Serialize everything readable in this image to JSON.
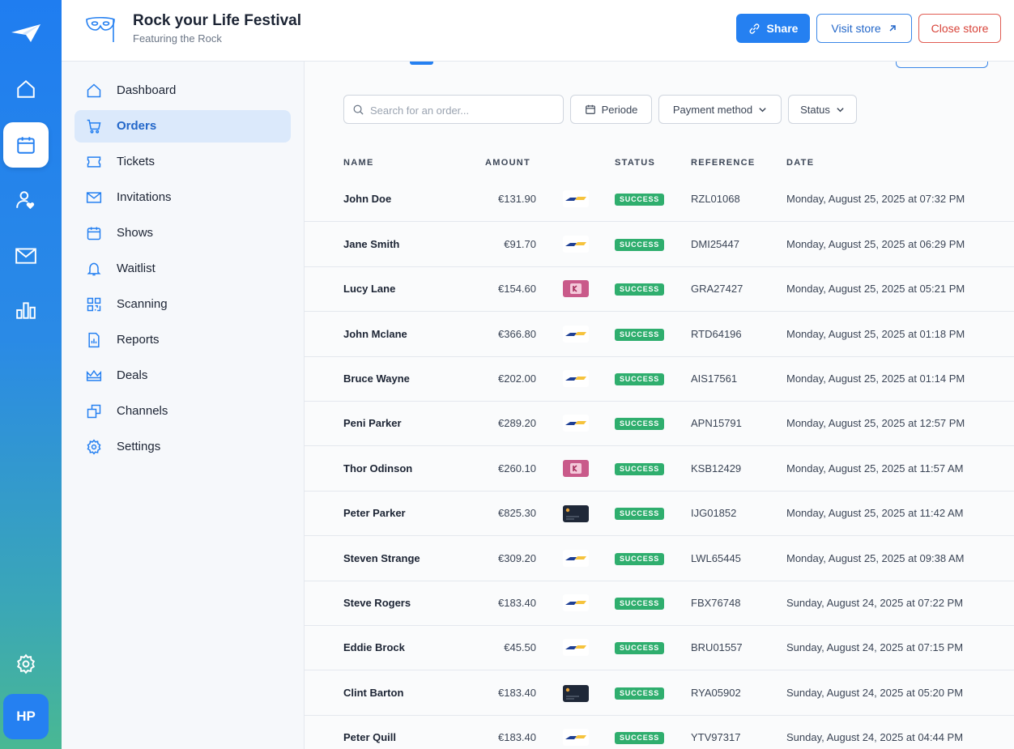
{
  "header": {
    "title": "Rock your Life Festival",
    "subtitle": "Featuring the Rock",
    "share_label": "Share",
    "visit_label": "Visit store",
    "close_label": "Close store"
  },
  "rail": {
    "items": [
      "paper-plane-logo",
      "home-icon",
      "calendar-icon",
      "user-heart-icon",
      "mail-icon",
      "bar-chart-icon"
    ],
    "settings_icon": "gear-icon",
    "avatar_initials": "HP"
  },
  "sidebar": {
    "items": [
      {
        "label": "Dashboard",
        "icon": "home-icon"
      },
      {
        "label": "Orders",
        "icon": "cart-icon",
        "active": true
      },
      {
        "label": "Tickets",
        "icon": "ticket-icon"
      },
      {
        "label": "Invitations",
        "icon": "envelope-icon"
      },
      {
        "label": "Shows",
        "icon": "calendar-icon"
      },
      {
        "label": "Waitlist",
        "icon": "bell-icon"
      },
      {
        "label": "Scanning",
        "icon": "qr-icon"
      },
      {
        "label": "Reports",
        "icon": "report-icon"
      },
      {
        "label": "Deals",
        "icon": "crown-icon"
      },
      {
        "label": "Channels",
        "icon": "copy-icon"
      },
      {
        "label": "Settings",
        "icon": "gear-icon"
      }
    ]
  },
  "filters": {
    "search_placeholder": "Search for an order...",
    "periode_label": "Periode",
    "payment_label": "Payment method",
    "status_label": "Status"
  },
  "table": {
    "columns": [
      "NAME",
      "AMOUNT",
      "STATUS",
      "REFERENCE",
      "DATE"
    ],
    "rows": [
      {
        "name": "John Doe",
        "amount": "€131.90",
        "pay": "ideal",
        "status": "SUCCESS",
        "reference": "RZL01068",
        "date": "Monday, August 25, 2025 at 07:32 PM"
      },
      {
        "name": "Jane Smith",
        "amount": "€91.70",
        "pay": "ideal",
        "status": "SUCCESS",
        "reference": "DMI25447",
        "date": "Monday, August 25, 2025 at 06:29 PM"
      },
      {
        "name": "Lucy Lane",
        "amount": "€154.60",
        "pay": "klarna",
        "status": "SUCCESS",
        "reference": "GRA27427",
        "date": "Monday, August 25, 2025 at 05:21 PM"
      },
      {
        "name": "John Mclane",
        "amount": "€366.80",
        "pay": "ideal",
        "status": "SUCCESS",
        "reference": "RTD64196",
        "date": "Monday, August 25, 2025 at 01:18 PM"
      },
      {
        "name": "Bruce Wayne",
        "amount": "€202.00",
        "pay": "ideal",
        "status": "SUCCESS",
        "reference": "AIS17561",
        "date": "Monday, August 25, 2025 at 01:14 PM"
      },
      {
        "name": "Peni Parker",
        "amount": "€289.20",
        "pay": "ideal",
        "status": "SUCCESS",
        "reference": "APN15791",
        "date": "Monday, August 25, 2025 at 12:57 PM"
      },
      {
        "name": "Thor Odinson",
        "amount": "€260.10",
        "pay": "klarna",
        "status": "SUCCESS",
        "reference": "KSB12429",
        "date": "Monday, August 25, 2025 at 11:57 AM"
      },
      {
        "name": "Peter Parker",
        "amount": "€825.30",
        "pay": "card",
        "status": "SUCCESS",
        "reference": "IJG01852",
        "date": "Monday, August 25, 2025 at 11:42 AM"
      },
      {
        "name": "Steven Strange",
        "amount": "€309.20",
        "pay": "ideal",
        "status": "SUCCESS",
        "reference": "LWL65445",
        "date": "Monday, August 25, 2025 at 09:38 AM"
      },
      {
        "name": "Steve Rogers",
        "amount": "€183.40",
        "pay": "ideal",
        "status": "SUCCESS",
        "reference": "FBX76748",
        "date": "Sunday, August 24, 2025 at 07:22 PM"
      },
      {
        "name": "Eddie Brock",
        "amount": "€45.50",
        "pay": "ideal",
        "status": "SUCCESS",
        "reference": "BRU01557",
        "date": "Sunday, August 24, 2025 at 07:15 PM"
      },
      {
        "name": "Clint Barton",
        "amount": "€183.40",
        "pay": "card",
        "status": "SUCCESS",
        "reference": "RYA05902",
        "date": "Sunday, August 24, 2025 at 05:20 PM"
      },
      {
        "name": "Peter Quill",
        "amount": "€183.40",
        "pay": "ideal",
        "status": "SUCCESS",
        "reference": "YTV97317",
        "date": "Sunday, August 24, 2025 at 04:44 PM"
      }
    ]
  },
  "colors": {
    "accent": "#2580f1",
    "success": "#2fae6e",
    "danger": "#d8443a"
  }
}
